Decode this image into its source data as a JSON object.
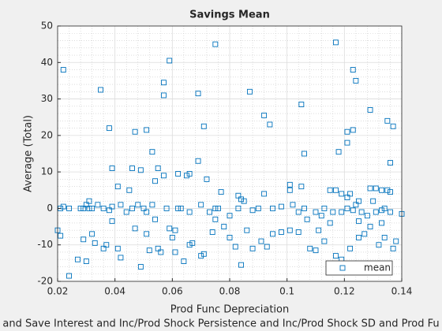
{
  "chart_data": {
    "type": "scatter",
    "title": "Savings Mean",
    "xlabel": "Prod Func Depreciation",
    "ylabel": "Average (Total)",
    "footer": "and Save Interest and Inc/Prod Shock Persistence and Inc/Prod Shock SD and Prod Fu",
    "xlim": [
      0.02,
      0.14
    ],
    "xticks": [
      0.02,
      0.04,
      0.06,
      0.08,
      0.1,
      0.12,
      0.14
    ],
    "ylim": [
      -20,
      50
    ],
    "yticks": [
      -20,
      -10,
      0,
      10,
      20,
      30,
      40,
      50
    ],
    "grid": true,
    "minor_grid": true,
    "legend": "southeast",
    "marker": "square",
    "x": [
      0.022,
      0.035,
      0.038,
      0.057,
      0.057,
      0.059,
      0.069,
      0.071,
      0.075,
      0.087,
      0.092,
      0.094,
      0.105,
      0.117,
      0.121,
      0.121,
      0.123,
      0.123,
      0.124,
      0.129,
      0.135,
      0.137,
      0.118,
      0.106,
      0.136,
      0.047,
      0.051,
      0.053,
      0.039,
      0.046,
      0.049,
      0.055,
      0.057,
      0.062,
      0.065,
      0.066,
      0.069,
      0.072,
      0.041,
      0.045,
      0.054,
      0.061,
      0.077,
      0.083,
      0.084,
      0.092,
      0.101,
      0.101,
      0.105,
      0.115,
      0.117,
      0.119,
      0.121,
      0.122,
      0.125,
      0.129,
      0.131,
      0.133,
      0.135,
      0.136,
      0.13,
      0.124,
      0.021,
      0.022,
      0.024,
      0.028,
      0.029,
      0.03,
      0.031,
      0.031,
      0.032,
      0.034,
      0.036,
      0.038,
      0.039,
      0.042,
      0.044,
      0.046,
      0.048,
      0.05,
      0.051,
      0.053,
      0.054,
      0.058,
      0.062,
      0.063,
      0.066,
      0.07,
      0.073,
      0.075,
      0.076,
      0.08,
      0.083,
      0.085,
      0.088,
      0.09,
      0.095,
      0.098,
      0.102,
      0.104,
      0.106,
      0.107,
      0.11,
      0.112,
      0.113,
      0.116,
      0.119,
      0.121,
      0.123,
      0.126,
      0.128,
      0.131,
      0.133,
      0.134,
      0.136,
      0.14,
      0.02,
      0.021,
      0.024,
      0.027,
      0.029,
      0.03,
      0.032,
      0.033,
      0.036,
      0.037,
      0.039,
      0.041,
      0.042,
      0.047,
      0.049,
      0.051,
      0.052,
      0.055,
      0.056,
      0.059,
      0.06,
      0.061,
      0.064,
      0.066,
      0.067,
      0.07,
      0.071,
      0.074,
      0.075,
      0.078,
      0.08,
      0.082,
      0.084,
      0.086,
      0.088,
      0.091,
      0.093,
      0.095,
      0.098,
      0.101,
      0.104,
      0.108,
      0.11,
      0.111,
      0.113,
      0.115,
      0.117,
      0.119,
      0.12,
      0.122,
      0.125,
      0.127,
      0.129,
      0.132,
      0.134,
      0.137,
      0.138,
      0.125,
      0.133
    ],
    "series": [
      {
        "name": "mean",
        "color": "#0072bd",
        "values": [
          38,
          32.5,
          22,
          34.5,
          31,
          40.5,
          31.5,
          22.5,
          45,
          32,
          25.5,
          23,
          28.5,
          45.5,
          21,
          18,
          21.5,
          38,
          35,
          27,
          24,
          22.5,
          15.5,
          15,
          12.5,
          21,
          21.5,
          15.5,
          11,
          11,
          10.5,
          11,
          9,
          9.5,
          9,
          9.5,
          13,
          8,
          6,
          5,
          7.5,
          -6,
          4.5,
          3.5,
          2.5,
          4,
          6.5,
          5,
          6,
          5,
          5,
          4,
          3,
          4,
          2,
          5.5,
          5.5,
          5,
          5,
          4.5,
          2,
          1,
          0,
          0.5,
          0,
          0,
          0,
          1,
          0,
          2,
          0,
          1,
          0,
          -0.5,
          0.5,
          1,
          -1,
          0,
          1,
          0,
          -1,
          1,
          -3,
          0,
          0,
          0,
          -1,
          1,
          -1,
          0,
          0,
          -2,
          0,
          2,
          -0.5,
          0,
          0,
          0.5,
          1,
          -1,
          0,
          -3,
          -1,
          -2,
          0,
          -1,
          -1,
          0,
          -0.5,
          -1,
          -2,
          -1,
          -0.5,
          0,
          -1,
          -1.5,
          -6,
          -7.5,
          -18.5,
          -14,
          -8.5,
          -14.5,
          -7,
          -9.5,
          -11,
          -10,
          -3.5,
          -11,
          -13.5,
          -5.5,
          -16,
          -7,
          -11.5,
          -11,
          -12,
          -5.5,
          -8,
          -12,
          -14.5,
          -10,
          -9.5,
          -13,
          -12.5,
          -6.5,
          -3,
          -5,
          -8,
          -10.5,
          -15.5,
          -6,
          -11,
          -9,
          -10.5,
          -7,
          -6.5,
          -6,
          -6.5,
          -11,
          -11.5,
          -6,
          -9,
          -4,
          -13,
          -14,
          -17.5,
          -11,
          -8,
          -7,
          -5,
          -10,
          -8,
          -11,
          -9,
          -3.5,
          -4
        ]
      }
    ]
  }
}
